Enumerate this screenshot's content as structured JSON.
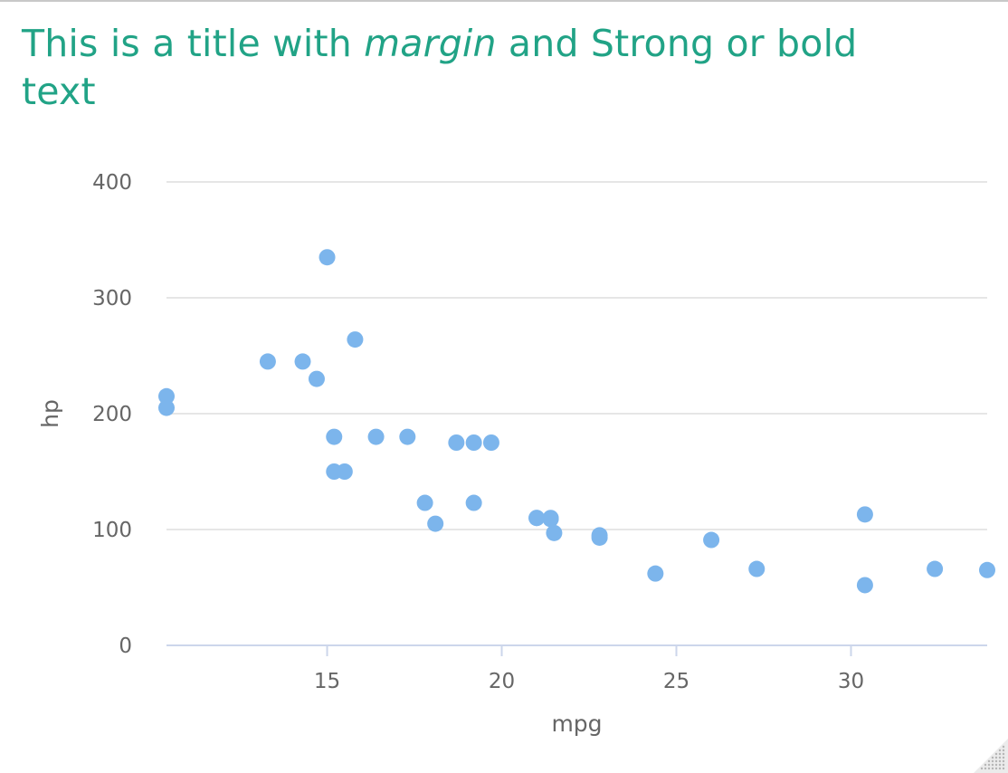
{
  "title": {
    "part1": "This is a title with ",
    "italic": "margin",
    "part2": " and Strong or bold text"
  },
  "colors": {
    "title": "#21a386",
    "point": "#7cb5ec",
    "grid": "#e6e6e6",
    "axis_line": "#ccd6eb",
    "label": "#666666"
  },
  "chart_data": {
    "type": "scatter",
    "xlabel": "mpg",
    "ylabel": "hp",
    "xlim": [
      10.4,
      33.9
    ],
    "ylim": [
      0,
      400
    ],
    "x_ticks": [
      15,
      20,
      25,
      30
    ],
    "y_ticks": [
      0,
      100,
      200,
      300,
      400
    ],
    "grid": true,
    "legend": false,
    "series": [
      {
        "points": [
          {
            "x": 21.0,
            "y": 110
          },
          {
            "x": 21.0,
            "y": 110
          },
          {
            "x": 22.8,
            "y": 93
          },
          {
            "x": 21.4,
            "y": 110
          },
          {
            "x": 18.7,
            "y": 175
          },
          {
            "x": 18.1,
            "y": 105
          },
          {
            "x": 14.3,
            "y": 245
          },
          {
            "x": 24.4,
            "y": 62
          },
          {
            "x": 22.8,
            "y": 95
          },
          {
            "x": 19.2,
            "y": 123
          },
          {
            "x": 17.8,
            "y": 123
          },
          {
            "x": 16.4,
            "y": 180
          },
          {
            "x": 17.3,
            "y": 180
          },
          {
            "x": 15.2,
            "y": 180
          },
          {
            "x": 10.4,
            "y": 205
          },
          {
            "x": 10.4,
            "y": 215
          },
          {
            "x": 14.7,
            "y": 230
          },
          {
            "x": 32.4,
            "y": 66
          },
          {
            "x": 30.4,
            "y": 52
          },
          {
            "x": 33.9,
            "y": 65
          },
          {
            "x": 21.5,
            "y": 97
          },
          {
            "x": 15.5,
            "y": 150
          },
          {
            "x": 15.2,
            "y": 150
          },
          {
            "x": 13.3,
            "y": 245
          },
          {
            "x": 19.2,
            "y": 175
          },
          {
            "x": 27.3,
            "y": 66
          },
          {
            "x": 26.0,
            "y": 91
          },
          {
            "x": 30.4,
            "y": 113
          },
          {
            "x": 15.8,
            "y": 264
          },
          {
            "x": 19.7,
            "y": 175
          },
          {
            "x": 15.0,
            "y": 335
          },
          {
            "x": 21.4,
            "y": 109
          }
        ]
      }
    ]
  }
}
